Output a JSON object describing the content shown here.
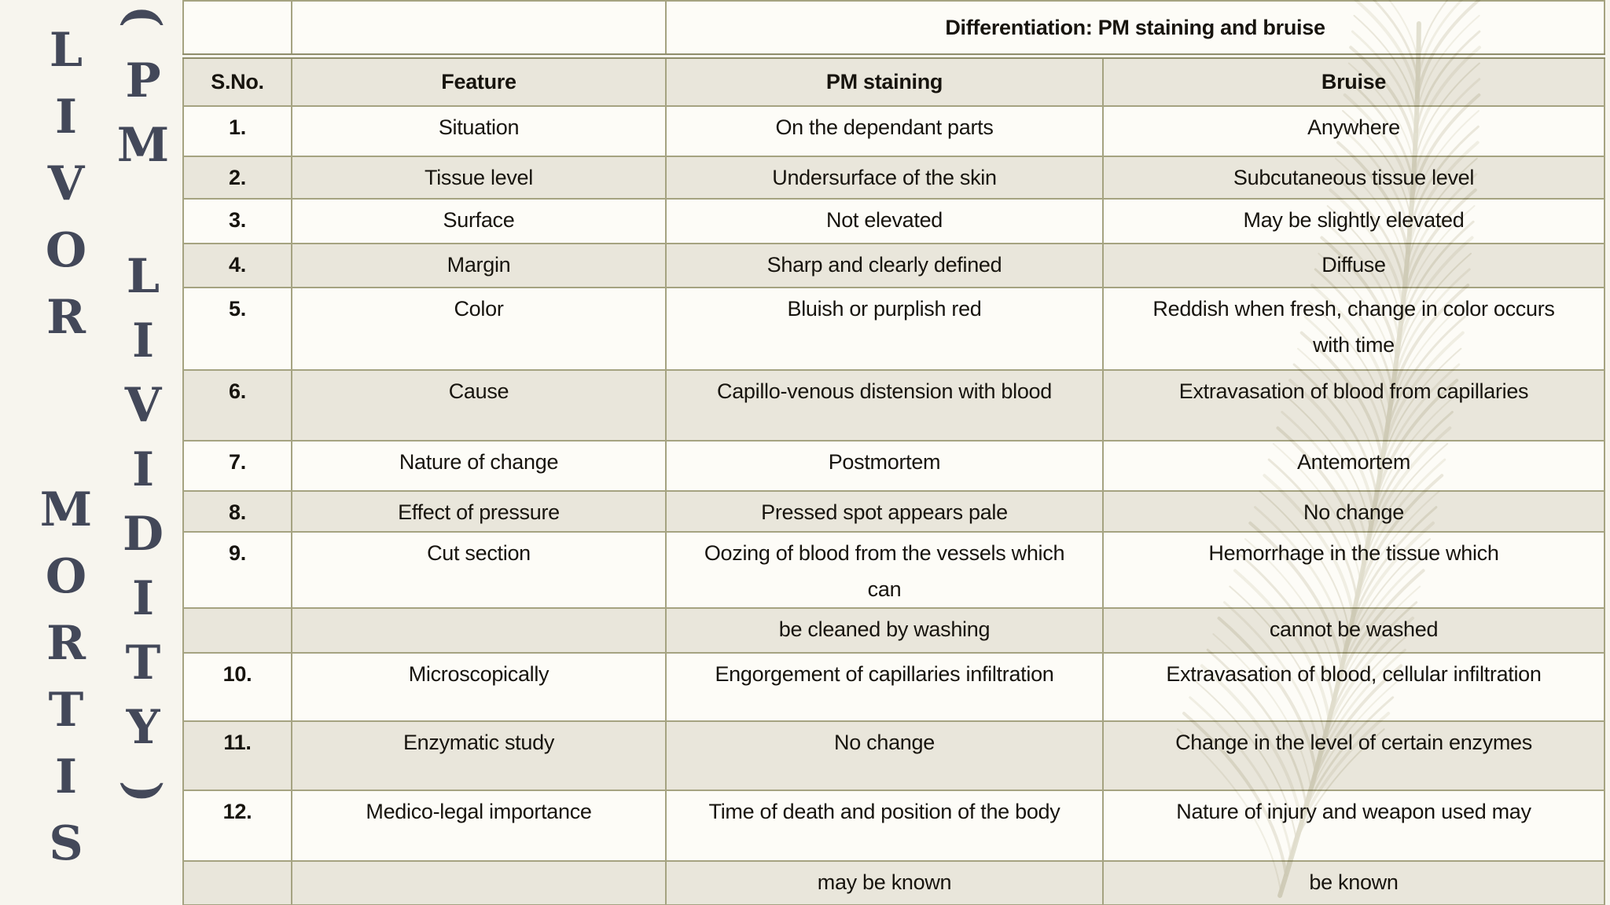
{
  "sidebar": {
    "title_main": "LIVOR MORTIS",
    "title_sub": "(PM LIVIDITY)"
  },
  "table": {
    "title": "Differentiation: PM staining and bruise",
    "headers": [
      "S.No.",
      "Feature",
      "PM staining",
      "Bruise"
    ],
    "rows": [
      {
        "sno": "1.",
        "feature": "Situation",
        "pm_staining": "On the dependant parts",
        "bruise": "Anywhere"
      },
      {
        "sno": "2.",
        "feature": "Tissue level",
        "pm_staining": "Undersurface of the skin",
        "bruise": "Subcutaneous tissue level"
      },
      {
        "sno": "3.",
        "feature": "Surface",
        "pm_staining": "Not elevated",
        "bruise": "May be slightly elevated"
      },
      {
        "sno": "4.",
        "feature": "Margin",
        "pm_staining": "Sharp and clearly defined",
        "bruise": "Diffuse"
      },
      {
        "sno": "5.",
        "feature": "Color",
        "pm_staining": "Bluish or purplish red",
        "bruise": "Reddish when fresh, change in color occurs\nwith time"
      },
      {
        "sno": "6.",
        "feature": "Cause",
        "pm_staining": "Capillo-venous distension with blood",
        "bruise": "Extravasation of blood from capillaries"
      },
      {
        "sno": "7.",
        "feature": "Nature of change",
        "pm_staining": "Postmortem",
        "bruise": "Antemortem"
      },
      {
        "sno": "8.",
        "feature": "Effect of pressure",
        "pm_staining": "Pressed spot appears pale",
        "bruise": "No change"
      },
      {
        "sno": "9.",
        "feature": "Cut section",
        "pm_staining": "Oozing of blood from the vessels which\ncan",
        "bruise": "Hemorrhage in the tissue which"
      },
      {
        "sno": "",
        "feature": "",
        "pm_staining": "be cleaned by washing",
        "bruise": "cannot be washed"
      },
      {
        "sno": "10.",
        "feature": "Microscopically",
        "pm_staining": "Engorgement of capillaries infiltration",
        "bruise": "Extravasation of blood, cellular infiltration"
      },
      {
        "sno": "11.",
        "feature": "Enzymatic study",
        "pm_staining": "No change",
        "bruise": "Change in the level of certain enzymes"
      },
      {
        "sno": "12.",
        "feature": "Medico-legal importance",
        "pm_staining": "Time of death and position of the body",
        "bruise": "Nature of injury and weapon used may"
      },
      {
        "sno": "",
        "feature": "",
        "pm_staining": "may be known",
        "bruise": "be known"
      }
    ]
  },
  "decoration": {
    "watermark_icon": "wheat-feather"
  },
  "colors": {
    "bg": "#f7f5ee",
    "row_light": "#fdfcf7",
    "row_shaded": "#e9e6db",
    "border": "#a5a381",
    "title_rule": "#8f8d6b",
    "ink": "#17140e",
    "sidebar_text": "#434859",
    "feather": "#c9c5ae"
  }
}
